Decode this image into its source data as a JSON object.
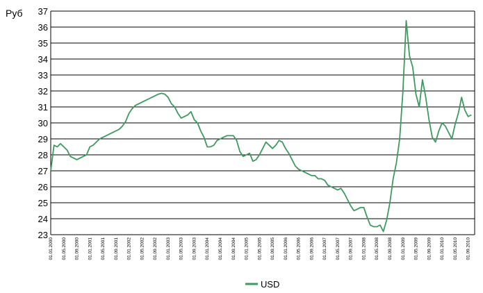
{
  "chart_data": {
    "type": "line",
    "ylabel": "Руб",
    "ylim": [
      23,
      37
    ],
    "yticks": [
      23,
      24,
      25,
      26,
      27,
      28,
      29,
      30,
      31,
      32,
      33,
      34,
      35,
      36,
      37
    ],
    "grid": true,
    "legend_position": "bottom",
    "color": "#3C9A5E",
    "x_tick_labels": [
      "01.01.2000",
      "01.05.2000",
      "01.09.2000",
      "01.01.2001",
      "01.05.2001",
      "01.09.2001",
      "01.01.2002",
      "01.05.2002",
      "01.09.2002",
      "01.01.2003",
      "01.05.2003",
      "01.09.2003",
      "01.01.2004",
      "01.05.2004",
      "01.09.2004",
      "01.01.2005",
      "01.05.2005",
      "01.09.2005",
      "01.01.2006",
      "01.05.2006",
      "01.09.2006",
      "01.01.2007",
      "01.05.2007",
      "01.09.2007",
      "01.01.2008",
      "01.05.2008",
      "01.09.2008",
      "01.01.2009",
      "01.05.2009",
      "01.09.2009",
      "01.01.2010",
      "01.05.2010",
      "01.09.2010"
    ],
    "series": [
      {
        "name": "USD",
        "x": [
          "2000-01",
          "2000-02",
          "2000-03",
          "2000-04",
          "2000-05",
          "2000-06",
          "2000-07",
          "2000-08",
          "2000-09",
          "2000-10",
          "2000-11",
          "2000-12",
          "2001-01",
          "2001-02",
          "2001-03",
          "2001-04",
          "2001-05",
          "2001-06",
          "2001-07",
          "2001-08",
          "2001-09",
          "2001-10",
          "2001-11",
          "2001-12",
          "2002-01",
          "2002-02",
          "2002-03",
          "2002-04",
          "2002-05",
          "2002-06",
          "2002-07",
          "2002-08",
          "2002-09",
          "2002-10",
          "2002-11",
          "2002-12",
          "2003-01",
          "2003-02",
          "2003-03",
          "2003-04",
          "2003-05",
          "2003-06",
          "2003-07",
          "2003-08",
          "2003-09",
          "2003-10",
          "2003-11",
          "2003-12",
          "2004-01",
          "2004-02",
          "2004-03",
          "2004-04",
          "2004-05",
          "2004-06",
          "2004-07",
          "2004-08",
          "2004-09",
          "2004-10",
          "2004-11",
          "2004-12",
          "2005-01",
          "2005-02",
          "2005-03",
          "2005-04",
          "2005-05",
          "2005-06",
          "2005-07",
          "2005-08",
          "2005-09",
          "2005-10",
          "2005-11",
          "2005-12",
          "2006-01",
          "2006-02",
          "2006-03",
          "2006-04",
          "2006-05",
          "2006-06",
          "2006-07",
          "2006-08",
          "2006-09",
          "2006-10",
          "2006-11",
          "2006-12",
          "2007-01",
          "2007-02",
          "2007-03",
          "2007-04",
          "2007-05",
          "2007-06",
          "2007-07",
          "2007-08",
          "2007-09",
          "2007-10",
          "2007-11",
          "2007-12",
          "2008-01",
          "2008-02",
          "2008-03",
          "2008-04",
          "2008-05",
          "2008-06",
          "2008-07",
          "2008-08",
          "2008-09",
          "2008-10",
          "2008-11",
          "2008-12",
          "2009-01",
          "2009-02",
          "2009-03",
          "2009-04",
          "2009-05",
          "2009-06",
          "2009-07",
          "2009-08",
          "2009-09",
          "2009-10",
          "2009-11",
          "2009-12",
          "2010-01",
          "2010-02",
          "2010-03",
          "2010-04",
          "2010-05",
          "2010-06",
          "2010-07",
          "2010-08",
          "2010-09",
          "2010-10"
        ],
        "values": [
          27.0,
          28.6,
          28.5,
          28.7,
          28.5,
          28.3,
          27.9,
          27.8,
          27.7,
          27.8,
          27.9,
          28.0,
          28.5,
          28.6,
          28.8,
          29.0,
          29.1,
          29.2,
          29.3,
          29.4,
          29.5,
          29.6,
          29.8,
          30.1,
          30.6,
          30.9,
          31.1,
          31.2,
          31.3,
          31.4,
          31.5,
          31.6,
          31.7,
          31.8,
          31.85,
          31.8,
          31.6,
          31.2,
          31.0,
          30.6,
          30.3,
          30.4,
          30.5,
          30.7,
          30.2,
          30.0,
          29.5,
          29.1,
          28.5,
          28.5,
          28.6,
          28.9,
          29.0,
          29.1,
          29.2,
          29.2,
          29.2,
          28.9,
          28.2,
          27.9,
          28.0,
          28.1,
          27.6,
          27.7,
          28.0,
          28.4,
          28.8,
          28.6,
          28.4,
          28.6,
          28.9,
          28.8,
          28.4,
          28.1,
          27.7,
          27.3,
          27.1,
          27.0,
          26.9,
          26.8,
          26.7,
          26.7,
          26.5,
          26.5,
          26.4,
          26.1,
          26.0,
          25.9,
          25.8,
          25.9,
          25.6,
          25.2,
          24.8,
          24.5,
          24.6,
          24.7,
          24.7,
          24.1,
          23.6,
          23.5,
          23.5,
          23.6,
          23.2,
          23.9,
          25.0,
          26.5,
          27.5,
          29.0,
          32.0,
          36.4,
          34.2,
          33.5,
          31.8,
          31.0,
          32.7,
          31.6,
          30.2,
          29.1,
          28.8,
          29.5,
          30.0,
          29.8,
          29.4,
          29.0,
          29.9,
          30.6,
          31.6,
          30.8,
          30.4,
          30.5
        ]
      }
    ]
  }
}
